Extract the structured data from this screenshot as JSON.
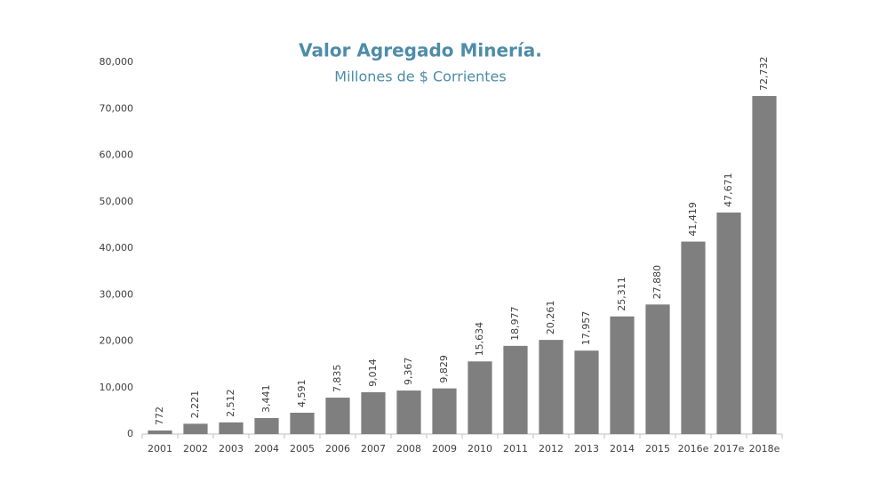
{
  "chart_data": {
    "type": "bar",
    "title": "Valor Agregado Minería.",
    "subtitle": "Millones de $ Corrientes",
    "categories": [
      "2001",
      "2002",
      "2003",
      "2004",
      "2005",
      "2006",
      "2007",
      "2008",
      "2009",
      "2010",
      "2011",
      "2012",
      "2013",
      "2014",
      "2015",
      "2016e",
      "2017e",
      "2018e"
    ],
    "values": [
      772,
      2221,
      2512,
      3441,
      4591,
      7835,
      9014,
      9367,
      9829,
      15634,
      18977,
      20261,
      17957,
      25311,
      27880,
      41419,
      47671,
      72732
    ],
    "value_labels": [
      "772",
      "2,221",
      "2,512",
      "3,441",
      "4,591",
      "7,835",
      "9,014",
      "9,367",
      "9,829",
      "15,634",
      "18,977",
      "20,261",
      "17,957",
      "25,311",
      "27,880",
      "41,419",
      "47,671",
      "72,732"
    ],
    "color": "#7f7f7f",
    "ylim": [
      0,
      80000
    ],
    "yticks": [
      0,
      {
        "value": 10000,
        "label": "10,000"
      },
      {
        "value": 20000,
        "label": "20,000"
      },
      {
        "value": 30000,
        "label": "30,000"
      },
      {
        "value": 40000,
        "label": "40,000"
      },
      {
        "value": 50000,
        "label": "50,000"
      },
      {
        "value": 60000,
        "label": "60,000"
      },
      {
        "value": 70000,
        "label": "70,000"
      },
      {
        "value": 80000,
        "label": "80,000"
      }
    ],
    "grid": false
  }
}
